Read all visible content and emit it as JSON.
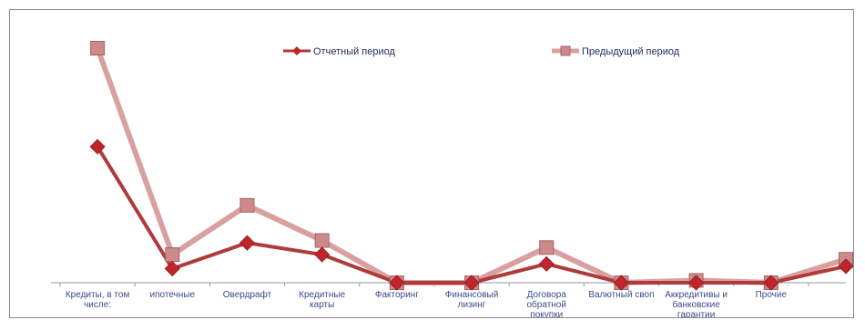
{
  "chart_data": {
    "type": "line",
    "categories": [
      "Кредиты, в том числе:",
      "ипотечные",
      "Овердрафт",
      "Кредитные карты",
      "Факторинг",
      "Финансовый лизинг",
      "Договора обратной покупки",
      "Валютный своп",
      "Аккредитивы и банковские гарантии",
      "Прочие",
      ""
    ],
    "category_lines": [
      [
        "Кредиты, в том",
        "числе:"
      ],
      [
        "ипотечные"
      ],
      [
        "Овердрафт"
      ],
      [
        "Кредитные",
        "карты"
      ],
      [
        "Факторинг"
      ],
      [
        "Финансовый",
        "лизинг"
      ],
      [
        "Договора",
        "обратной",
        "покупки"
      ],
      [
        "Валютный своп"
      ],
      [
        "Аккредитивы и",
        "банковские",
        "гарантии"
      ],
      [
        "Прочие"
      ],
      []
    ],
    "series": [
      {
        "name": "Отчетный период",
        "color": "#c0252d",
        "line_color": "#b03a3a",
        "marker": "diamond",
        "values": [
          58,
          6,
          17,
          12,
          0,
          0,
          8,
          0,
          0,
          0,
          7
        ]
      },
      {
        "name": "Предыдущий период",
        "color": "#cc8a8a",
        "line_color": "#d9a0a0",
        "marker": "square",
        "values": [
          100,
          12,
          33,
          18,
          0,
          0,
          15,
          0,
          1,
          0,
          10
        ]
      }
    ],
    "ylim": [
      0,
      100
    ],
    "grid": false,
    "legend_position": "top",
    "axes": {
      "y_axis_visible": false
    }
  }
}
